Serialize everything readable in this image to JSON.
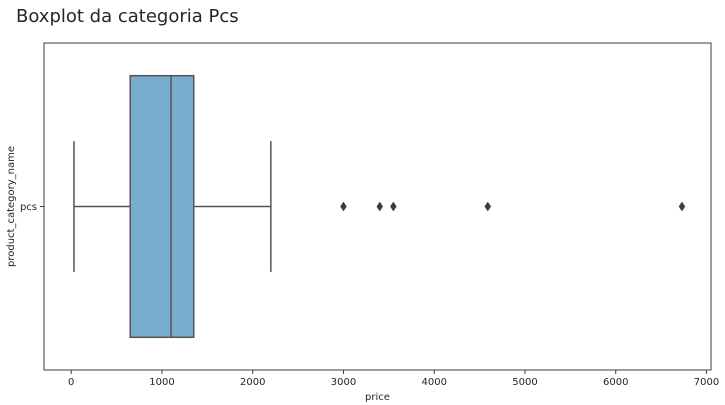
{
  "chart_data": {
    "type": "boxplot",
    "orientation": "horizontal",
    "title": "Boxplot da categoria Pcs",
    "xlabel": "price",
    "ylabel": "product_category_name",
    "xlim": [
      -300,
      7050
    ],
    "xticks": [
      0,
      1000,
      2000,
      3000,
      4000,
      5000,
      6000,
      7000
    ],
    "xtick_labels": [
      "0",
      "1000",
      "2000",
      "3000",
      "4000",
      "5000",
      "6000",
      "7000"
    ],
    "categories": [
      "pcs"
    ],
    "boxes": [
      {
        "category": "pcs",
        "whisker_low": 30,
        "q1": 650,
        "median": 1100,
        "q3": 1350,
        "whisker_high": 2200,
        "outliers": [
          3000,
          3400,
          3550,
          4590,
          6730
        ],
        "color": "#79add0"
      }
    ],
    "grid": false,
    "frame_color": "#3d3d3d",
    "line_color": "#555555"
  }
}
